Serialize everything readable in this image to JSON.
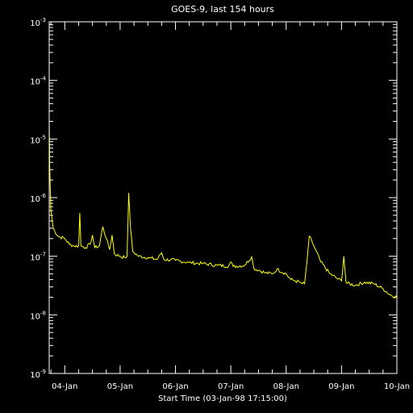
{
  "chart_data": {
    "type": "line",
    "title": "GOES-9, last 154 hours",
    "xlabel": "Start Time (03-Jan-98 17:15:00)",
    "ylabel": "",
    "yscale": "log",
    "ylim": [
      1e-09,
      0.001
    ],
    "xlim": [
      "1998-01-03T17:15",
      "1998-01-10T00:00"
    ],
    "grid": false,
    "y_tick_labels": [
      {
        "base": "10",
        "exp": "-9"
      },
      {
        "base": "10",
        "exp": "-8"
      },
      {
        "base": "10",
        "exp": "-7"
      },
      {
        "base": "10",
        "exp": "-6"
      },
      {
        "base": "10",
        "exp": "-5"
      },
      {
        "base": "10",
        "exp": "-4"
      },
      {
        "base": "10",
        "exp": "-3"
      }
    ],
    "x_tick_labels": [
      "04-Jan",
      "05-Jan",
      "06-Jan",
      "07-Jan",
      "08-Jan",
      "09-Jan",
      "10-Jan"
    ],
    "colors": {
      "background": "#000000",
      "axes": "#ffffff",
      "series": "#ffff00"
    },
    "series": [
      {
        "points": [
          [
            "1998-01-03T17:15",
            2e-05
          ],
          [
            "1998-01-03T17:30",
            3e-06
          ],
          [
            "1998-01-03T18:00",
            6e-07
          ],
          [
            "1998-01-03T19:00",
            3e-07
          ],
          [
            "1998-01-03T21:00",
            2.2e-07
          ],
          [
            "1998-01-04T00:00",
            2e-07
          ],
          [
            "1998-01-04T02:00",
            1.6e-07
          ],
          [
            "1998-01-04T04:00",
            1.5e-07
          ],
          [
            "1998-01-04T06:00",
            1.5e-07
          ],
          [
            "1998-01-04T06:30",
            5.5e-07
          ],
          [
            "1998-01-04T07:00",
            1.5e-07
          ],
          [
            "1998-01-04T09:00",
            1.4e-07
          ],
          [
            "1998-01-04T11:00",
            1.6e-07
          ],
          [
            "1998-01-04T12:00",
            2.3e-07
          ],
          [
            "1998-01-04T13:00",
            1.4e-07
          ],
          [
            "1998-01-04T15:00",
            1.5e-07
          ],
          [
            "1998-01-04T16:30",
            3.2e-07
          ],
          [
            "1998-01-04T18:00",
            2e-07
          ],
          [
            "1998-01-04T19:30",
            1.3e-07
          ],
          [
            "1998-01-04T20:30",
            2.3e-07
          ],
          [
            "1998-01-04T21:30",
            1.1e-07
          ],
          [
            "1998-01-05T00:00",
            1e-07
          ],
          [
            "1998-01-05T02:00",
            9.5e-08
          ],
          [
            "1998-01-05T03:00",
            1e-07
          ],
          [
            "1998-01-05T03:45",
            1.2e-06
          ],
          [
            "1998-01-05T04:30",
            3e-07
          ],
          [
            "1998-01-05T05:30",
            1.2e-07
          ],
          [
            "1998-01-05T08:00",
            1e-07
          ],
          [
            "1998-01-05T12:00",
            9.5e-08
          ],
          [
            "1998-01-05T16:00",
            8.8e-08
          ],
          [
            "1998-01-05T18:00",
            1.15e-07
          ],
          [
            "1998-01-05T19:00",
            8.8e-08
          ],
          [
            "1998-01-06T00:00",
            8.5e-08
          ],
          [
            "1998-01-06T06:00",
            7.8e-08
          ],
          [
            "1998-01-06T12:00",
            7.5e-08
          ],
          [
            "1998-01-06T18:00",
            7e-08
          ],
          [
            "1998-01-06T23:00",
            6.8e-08
          ],
          [
            "1998-01-07T00:00",
            8e-08
          ],
          [
            "1998-01-07T01:00",
            6.7e-08
          ],
          [
            "1998-01-07T06:00",
            7e-08
          ],
          [
            "1998-01-07T09:00",
            9.8e-08
          ],
          [
            "1998-01-07T10:00",
            6.2e-08
          ],
          [
            "1998-01-07T12:00",
            5.8e-08
          ],
          [
            "1998-01-07T15:00",
            5.2e-08
          ],
          [
            "1998-01-07T18:00",
            5e-08
          ],
          [
            "1998-01-07T20:00",
            6e-08
          ],
          [
            "1998-01-08T00:00",
            5e-08
          ],
          [
            "1998-01-08T02:00",
            4e-08
          ],
          [
            "1998-01-08T04:00",
            3.8e-08
          ],
          [
            "1998-01-08T06:00",
            3.6e-08
          ],
          [
            "1998-01-08T07:00",
            3.4e-08
          ],
          [
            "1998-01-08T08:00",
            3.4e-08
          ],
          [
            "1998-01-08T09:00",
            8e-08
          ],
          [
            "1998-01-08T10:00",
            2.2e-07
          ],
          [
            "1998-01-08T12:00",
            1.5e-07
          ],
          [
            "1998-01-08T15:00",
            8e-08
          ],
          [
            "1998-01-08T19:00",
            5e-08
          ],
          [
            "1998-01-08T22:00",
            4.2e-08
          ],
          [
            "1998-01-09T00:00",
            3.8e-08
          ],
          [
            "1998-01-09T01:00",
            1e-07
          ],
          [
            "1998-01-09T02:00",
            3.5e-08
          ],
          [
            "1998-01-09T06:00",
            3.2e-08
          ],
          [
            "1998-01-09T10:00",
            3.6e-08
          ],
          [
            "1998-01-09T14:00",
            3.4e-08
          ],
          [
            "1998-01-09T18:00",
            2.8e-08
          ],
          [
            "1998-01-09T21:00",
            2.2e-08
          ],
          [
            "1998-01-10T00:00",
            2e-08
          ]
        ]
      }
    ]
  }
}
